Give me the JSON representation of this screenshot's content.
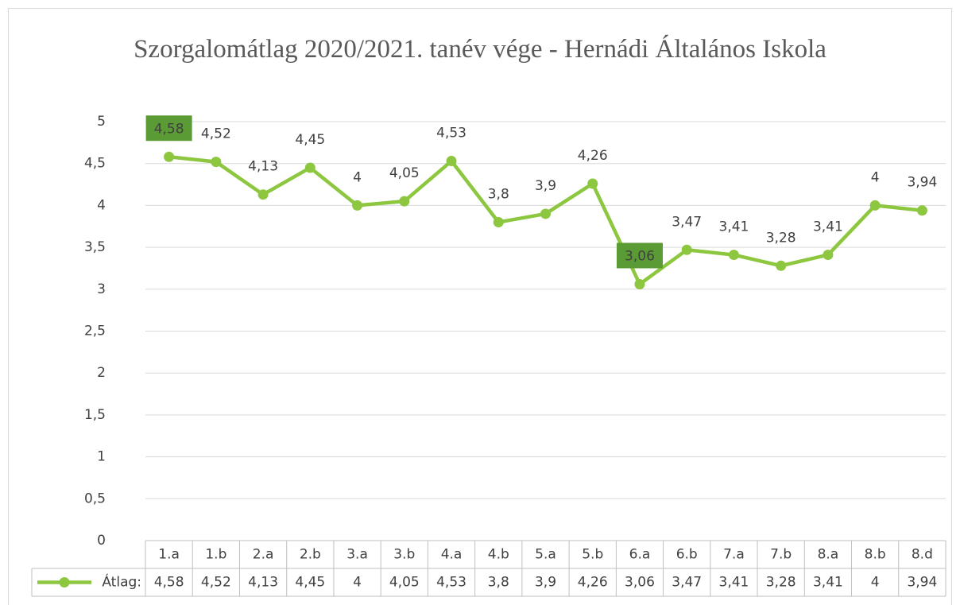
{
  "chart_data": {
    "type": "line",
    "title": "Szorgalomátlag 2020/2021. tanév vége - Hernádi Általános Iskola",
    "categories": [
      "1.a",
      "1.b",
      "2.a",
      "2.b",
      "3.a",
      "3.b",
      "4.a",
      "4.b",
      "5.a",
      "5.b",
      "6.a",
      "6.b",
      "7.a",
      "7.b",
      "8.a",
      "8.b",
      "8.d"
    ],
    "series": [
      {
        "name": "Átlag:",
        "color": "#8dc63f",
        "values": [
          4.58,
          4.52,
          4.13,
          4.45,
          4,
          4.05,
          4.53,
          3.8,
          3.9,
          4.26,
          3.06,
          3.47,
          3.41,
          3.28,
          3.41,
          4,
          3.94
        ],
        "value_labels": [
          "4,58",
          "4,52",
          "4,13",
          "4,45",
          "4",
          "4,05",
          "4,53",
          "3,8",
          "3,9",
          "4,26",
          "3,06",
          "3,47",
          "3,41",
          "3,28",
          "3,41",
          "4",
          "3,94"
        ]
      }
    ],
    "highlight_indices": [
      0,
      10
    ],
    "highlight_color": "#5b9b35",
    "ylim": [
      0,
      5
    ],
    "yticks": [
      0,
      {
        "value": 0.5,
        "label": "0,5"
      },
      1,
      {
        "value": 1.5,
        "label": "1,5"
      },
      2,
      {
        "value": 2.5,
        "label": "2,5"
      },
      3,
      {
        "value": 3.5,
        "label": "3,5"
      },
      4,
      {
        "value": 4.5,
        "label": "4,5"
      },
      5
    ],
    "grid": true,
    "data_table": true
  }
}
